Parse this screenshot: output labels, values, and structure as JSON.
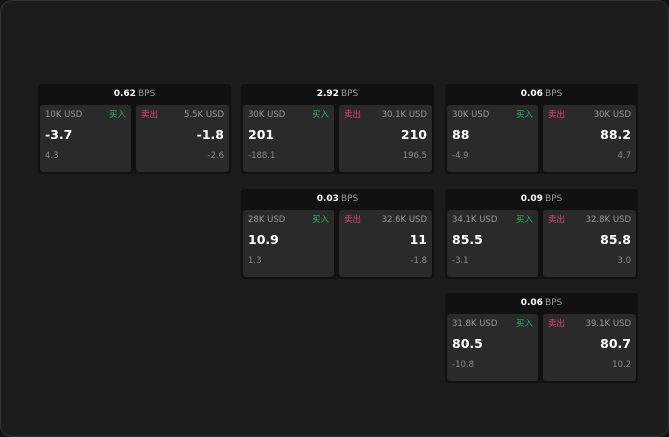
{
  "colors": {
    "buy": "#2fb36a",
    "sell": "#e0426e",
    "background": "#1c1c1c"
  },
  "unit": "BPS",
  "buy_label": "买入",
  "sell_label": "卖出",
  "cards": [
    {
      "spread": "0.62",
      "buy": {
        "size": "10K USD",
        "price": "-3.7",
        "change": "4.3"
      },
      "sell": {
        "size": "5.5K USD",
        "price": "-1.8",
        "change": "-2.6"
      }
    },
    {
      "spread": "2.92",
      "buy": {
        "size": "30K USD",
        "price": "201",
        "change": "-188.1"
      },
      "sell": {
        "size": "30.1K USD",
        "price": "210",
        "change": "196.5"
      }
    },
    {
      "spread": "0.06",
      "buy": {
        "size": "30K USD",
        "price": "88",
        "change": "-4.9"
      },
      "sell": {
        "size": "30K USD",
        "price": "88.2",
        "change": "4.7"
      }
    },
    {
      "spread": "0.03",
      "buy": {
        "size": "28K USD",
        "price": "10.9",
        "change": "1.3"
      },
      "sell": {
        "size": "32.6K USD",
        "price": "11",
        "change": "-1.8"
      }
    },
    {
      "spread": "0.09",
      "buy": {
        "size": "34.1K USD",
        "price": "85.5",
        "change": "-3.1"
      },
      "sell": {
        "size": "32.8K USD",
        "price": "85.8",
        "change": "3.0"
      }
    },
    {
      "spread": "0.06",
      "buy": {
        "size": "31.8K USD",
        "price": "80.5",
        "change": "-10.8"
      },
      "sell": {
        "size": "39.1K USD",
        "price": "80.7",
        "change": "10.2"
      }
    }
  ]
}
